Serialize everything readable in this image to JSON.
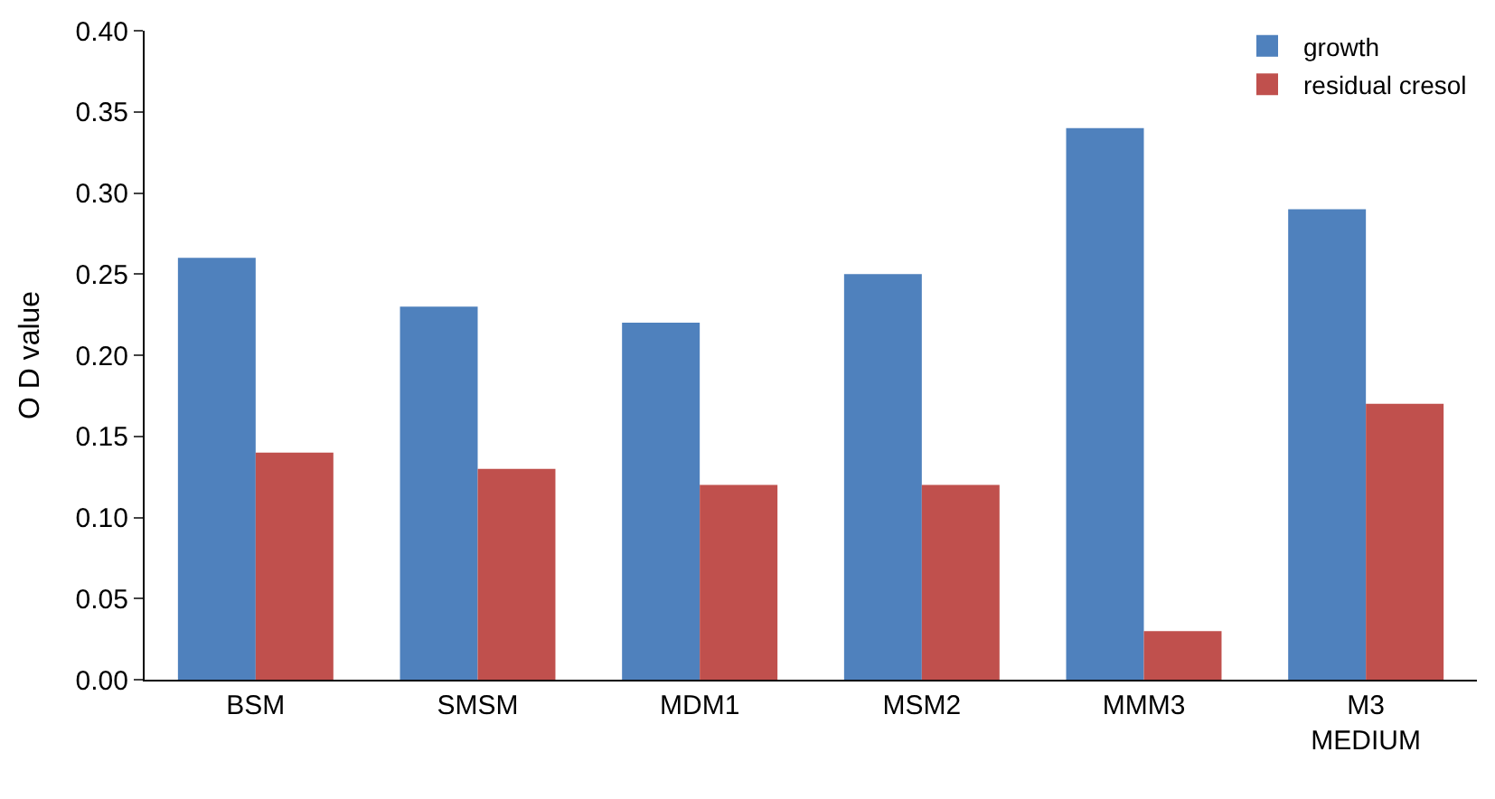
{
  "chart_data": {
    "type": "bar",
    "ylabel": "O D value",
    "categories": [
      "BSM",
      "SMSM",
      "MDM1",
      "MSM2",
      "MMM3",
      "M3\nMEDIUM"
    ],
    "series": [
      {
        "name": "growth",
        "color": "#4f81bd",
        "values": [
          0.26,
          0.23,
          0.22,
          0.25,
          0.34,
          0.29
        ]
      },
      {
        "name": "residual cresol",
        "color": "#c0504d",
        "values": [
          0.14,
          0.13,
          0.12,
          0.12,
          0.03,
          0.17
        ]
      }
    ],
    "ylim": [
      0,
      0.4
    ],
    "yticks": [
      {
        "value": 0,
        "label": "0.00"
      },
      {
        "value": 0.05,
        "label": "0.05"
      },
      {
        "value": 0.1,
        "label": "0.10"
      },
      {
        "value": 0.15,
        "label": "0.15"
      },
      {
        "value": 0.2,
        "label": "0.20"
      },
      {
        "value": 0.25,
        "label": "0.25"
      },
      {
        "value": 0.3,
        "label": "0.30"
      },
      {
        "value": 0.35,
        "label": "0.35"
      },
      {
        "value": 0.4,
        "label": "0.40"
      }
    ],
    "legend": "top right"
  }
}
